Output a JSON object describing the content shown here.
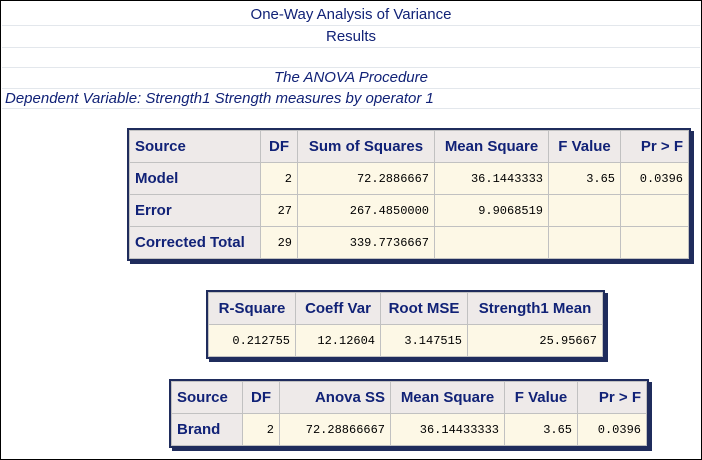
{
  "header": {
    "title": "One-Way Analysis of Variance",
    "subtitle": "Results",
    "procedure": "The ANOVA Procedure",
    "dependent_variable": "Dependent Variable: Strength1 Strength measures by operator 1"
  },
  "anova_table": {
    "headers": [
      "Source",
      "DF",
      "Sum of Squares",
      "Mean Square",
      "F Value",
      "Pr > F"
    ],
    "rows": [
      [
        "Model",
        "2",
        "72.2886667",
        "36.1443333",
        "3.65",
        "0.0396"
      ],
      [
        "Error",
        "27",
        "267.4850000",
        "9.9068519",
        "",
        ""
      ],
      [
        "Corrected Total",
        "29",
        "339.7736667",
        "",
        "",
        ""
      ]
    ]
  },
  "fit_table": {
    "headers": [
      "R-Square",
      "Coeff Var",
      "Root MSE",
      "Strength1 Mean"
    ],
    "row": [
      "0.212755",
      "12.12604",
      "3.147515",
      "25.95667"
    ]
  },
  "effect_table": {
    "headers": [
      "Source",
      "DF",
      "Anova SS",
      "Mean Square",
      "F Value",
      "Pr > F"
    ],
    "rows": [
      [
        "Brand",
        "2",
        "72.28866667",
        "36.14433333",
        "3.65",
        "0.0396"
      ]
    ]
  },
  "colors": {
    "header_text": "#112277",
    "header_cell_bg": "#eeeae9",
    "data_cell_bg": "#fdf8e6",
    "table_border": "#1f2c5c"
  }
}
